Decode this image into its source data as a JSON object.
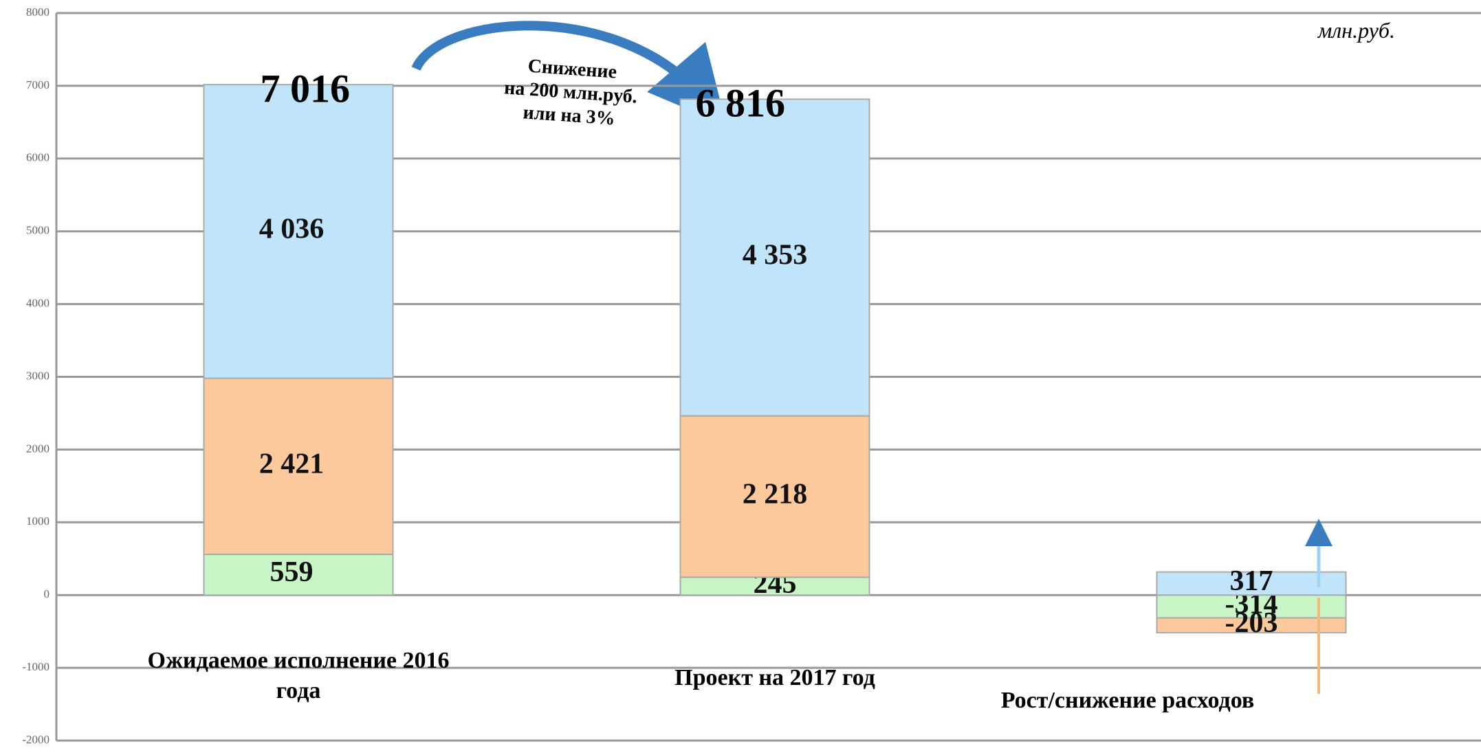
{
  "chart_data": {
    "type": "stacked_bar",
    "unit_label": "млн.руб.",
    "categories": [
      "Ожидаемое исполнение 2016 года",
      "Проект на 2017 год",
      "Рост/снижение расходов"
    ],
    "series": [
      {
        "name": null,
        "color": "#c8f5c6",
        "values": [
          559,
          245,
          -314
        ],
        "value_labels": [
          "559",
          "245",
          "-314"
        ]
      },
      {
        "name": null,
        "color": "#fbc99c",
        "values": [
          2421,
          2218,
          -203
        ],
        "value_labels": [
          "2 421",
          "2 218",
          "-203"
        ]
      },
      {
        "name": null,
        "color": "#c0e5fa",
        "values": [
          4036,
          4353,
          317
        ],
        "value_labels": [
          "4 036",
          "4 353",
          "317"
        ]
      }
    ],
    "totals": [
      7016,
      6816
    ],
    "total_labels": [
      "7 016",
      "6 816"
    ],
    "annotation": [
      "Снижение",
      "на 200 млн.руб.",
      "или на 3%"
    ],
    "ylim": [
      -2000,
      8000
    ],
    "yticks": [
      -2000,
      -1000,
      0,
      1000,
      2000,
      3000,
      4000,
      5000,
      6000,
      7000,
      8000
    ],
    "grid": true
  }
}
